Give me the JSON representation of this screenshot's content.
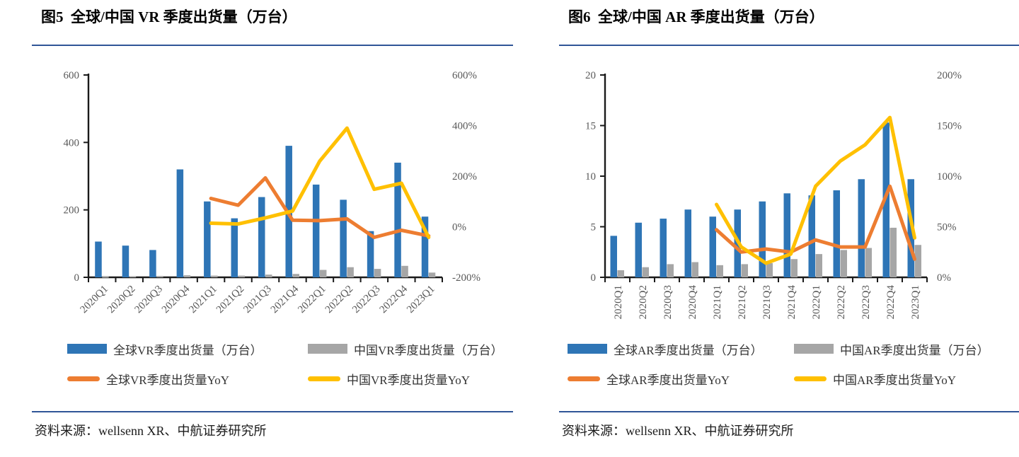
{
  "panels": [
    {
      "source": "资料来源：wellsenn XR、中航证券研究所"
    },
    {
      "source": "资料来源：wellsenn XR、中航证券研究所"
    }
  ],
  "chart_data": [
    {
      "type": "bar",
      "title": "图5  全球/中国 VR 季度出货量（万台）",
      "categories": [
        "2020Q1",
        "2020Q2",
        "2020Q3",
        "2020Q4",
        "2021Q1",
        "2021Q2",
        "2021Q3",
        "2021Q4",
        "2022Q1",
        "2022Q2",
        "2022Q3",
        "2022Q4",
        "2023Q1"
      ],
      "series": [
        {
          "key": "global_vr",
          "name": "全球VR季度出货量（万台）",
          "type": "bar",
          "axis": "left",
          "color": "#2E75B6",
          "values": [
            106,
            94,
            81,
            320,
            225,
            175,
            238,
            390,
            275,
            230,
            137,
            340,
            180
          ]
        },
        {
          "key": "china_vr",
          "name": "中国VR季度出货量（万台）",
          "type": "bar",
          "axis": "left",
          "color": "#A6A6A6",
          "values": [
            2,
            3,
            4,
            6,
            5,
            5,
            8,
            10,
            22,
            30,
            25,
            34,
            14
          ]
        },
        {
          "key": "global_vr_yoy",
          "name": "全球VR季度出货量YoY",
          "type": "line",
          "axis": "right",
          "color": "#ED7D31",
          "values": [
            null,
            null,
            null,
            null,
            112,
            85,
            193,
            26,
            24,
            31,
            -42,
            -14,
            -36
          ]
        },
        {
          "key": "china_vr_yoy",
          "name": "中国VR季度出货量YoY",
          "type": "line",
          "axis": "right",
          "color": "#FFC000",
          "values": [
            null,
            null,
            null,
            null,
            14,
            11,
            35,
            62,
            260,
            390,
            148,
            172,
            -42
          ]
        }
      ],
      "left_axis": {
        "min": 0,
        "max": 600,
        "step": 200,
        "suffix": ""
      },
      "right_axis": {
        "min": -200,
        "max": 600,
        "step": 200,
        "suffix": "%"
      },
      "x_label_rotation": -45,
      "grid": false,
      "legend_position": "bottom"
    },
    {
      "type": "bar",
      "title": "图6  全球/中国 AR 季度出货量（万台）",
      "categories": [
        "2020Q1",
        "2020Q2",
        "2020Q3",
        "2020Q4",
        "2021Q1",
        "2021Q2",
        "2021Q3",
        "2021Q4",
        "2022Q1",
        "2022Q2",
        "2022Q3",
        "2022Q4",
        "2023Q1"
      ],
      "series": [
        {
          "key": "global_ar",
          "name": "全球AR季度出货量（万台）",
          "type": "bar",
          "axis": "left",
          "color": "#2E75B6",
          "values": [
            4.1,
            5.4,
            5.8,
            6.7,
            6.0,
            6.7,
            7.5,
            8.3,
            8.1,
            8.6,
            9.7,
            15.3,
            9.7
          ]
        },
        {
          "key": "china_ar",
          "name": "中国AR季度出货量（万台）",
          "type": "bar",
          "axis": "left",
          "color": "#A6A6A6",
          "values": [
            0.7,
            1.0,
            1.3,
            1.5,
            1.2,
            1.3,
            1.4,
            1.8,
            2.3,
            2.7,
            2.9,
            4.9,
            3.2
          ]
        },
        {
          "key": "global_ar_yoy",
          "name": "全球AR季度出货量YoY",
          "type": "line",
          "axis": "right",
          "color": "#ED7D31",
          "values": [
            null,
            null,
            null,
            null,
            47,
            25,
            28,
            25,
            37,
            30,
            30,
            90,
            18
          ]
        },
        {
          "key": "china_ar_yoy",
          "name": "中国AR季度出货量YoY",
          "type": "line",
          "axis": "right",
          "color": "#FFC000",
          "values": [
            null,
            null,
            null,
            null,
            72,
            30,
            14,
            23,
            90,
            115,
            131,
            158,
            39
          ]
        }
      ],
      "left_axis": {
        "min": 0,
        "max": 20,
        "step": 5,
        "suffix": ""
      },
      "right_axis": {
        "min": 0,
        "max": 200,
        "step": 50,
        "suffix": "%"
      },
      "x_label_rotation": -90,
      "grid": false,
      "legend_position": "bottom"
    }
  ]
}
